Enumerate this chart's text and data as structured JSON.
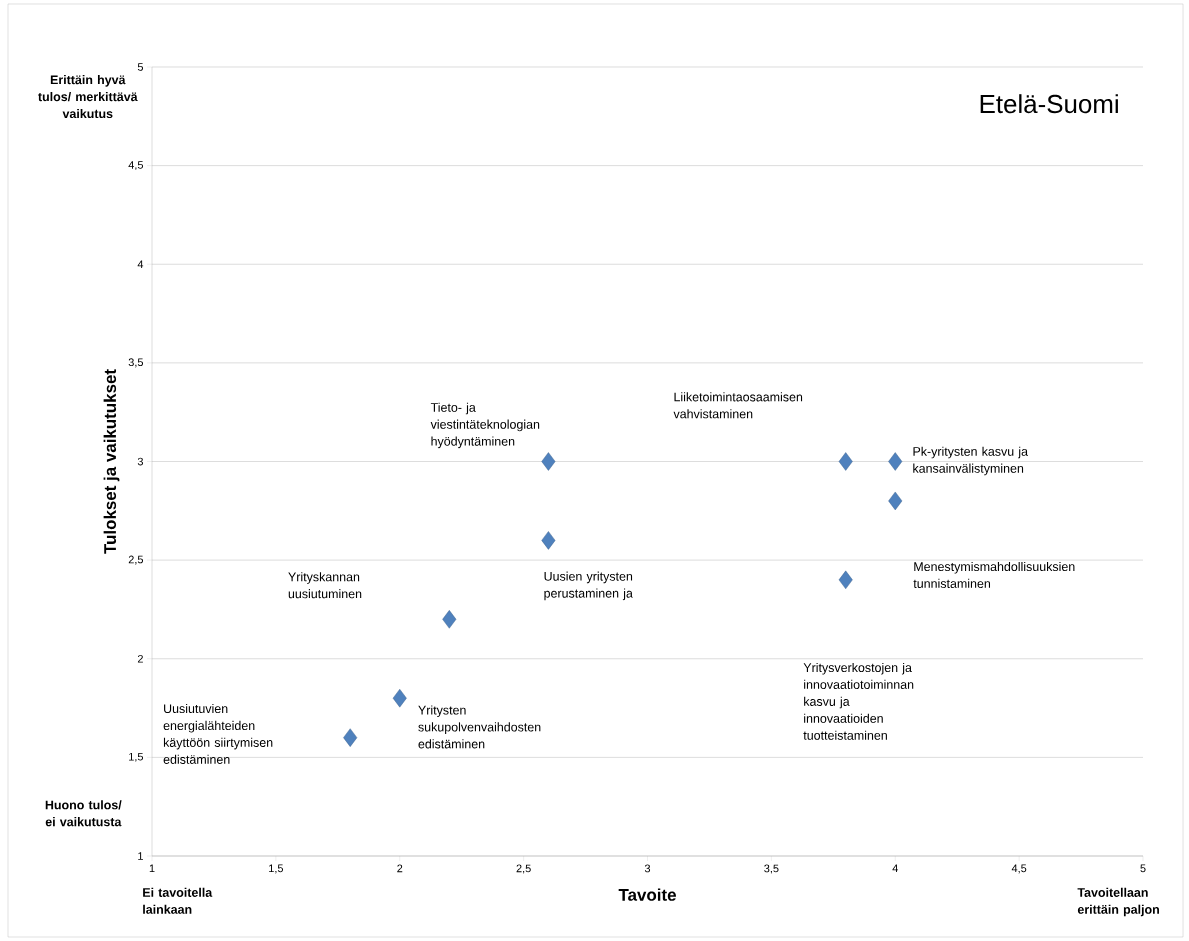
{
  "chart_data": {
    "type": "scatter",
    "title": "Etelä-Suomi",
    "xlabel": "Tavoite",
    "ylabel": "Tulokset ja vaikutukset",
    "x": [
      1.8,
      2,
      2.2,
      2.6,
      2.6,
      3.8,
      4,
      4,
      3.8
    ],
    "values": [
      1.6,
      1.8,
      2.2,
      2.6,
      3.0,
      3.0,
      3.0,
      2.8,
      2.4
    ],
    "color": "#4f81bd",
    "marker": "diamond",
    "grid": "y",
    "xlim": [
      1,
      5
    ],
    "ylim": [
      1,
      5
    ],
    "xticks": [
      1,
      {
        "value": 1.5,
        "label": "1,5"
      },
      2,
      {
        "value": 2.5,
        "label": "2,5"
      },
      3,
      {
        "value": 3.5,
        "label": "3,5"
      },
      4,
      {
        "value": 4.5,
        "label": "4,5"
      },
      5
    ],
    "yticks": [
      1,
      {
        "value": 1.5,
        "label": "1,5"
      },
      2,
      {
        "value": 2.5,
        "label": "2,5"
      },
      3,
      {
        "value": 3.5,
        "label": "3,5"
      },
      4,
      {
        "value": 4.5,
        "label": "4,5"
      },
      5
    ],
    "annotations": [
      {
        "text": "Yritysten sukupolvenvaihdosten edistäminen",
        "x": 2,
        "y": 1.8
      },
      {
        "text": "Uusien yritysten perustaminen ja",
        "x": 2.6,
        "y": 2.6
      },
      {
        "text": "Tieto- ja viestintäteknologian hyödyntäminen",
        "x": 2.6,
        "y": 3.0
      },
      {
        "text": "Pk-yritysten kasvu ja kansainvälistyminen",
        "x": 4,
        "y": 3.0
      },
      "Yrityskannan uusiutuminen",
      "Uusiutuvien energialähteiden käyttöön siirtymisen edistäminen",
      "Liiketoimintaosaamisen vahvistaminen",
      "Yritysverkostojen ja innovaatiotoiminnan kasvu ja innovaatioiden tuotteistaminen",
      "Menestymismahdollisuuksien tunnistaminen",
      "Erittäin hyvä tulos/ merkittävä vaikutus",
      "Huono tulos/ ei vaikutusta",
      "Ei tavoitella lainkaan",
      "Tavoitellaan erittäin paljon"
    ]
  }
}
